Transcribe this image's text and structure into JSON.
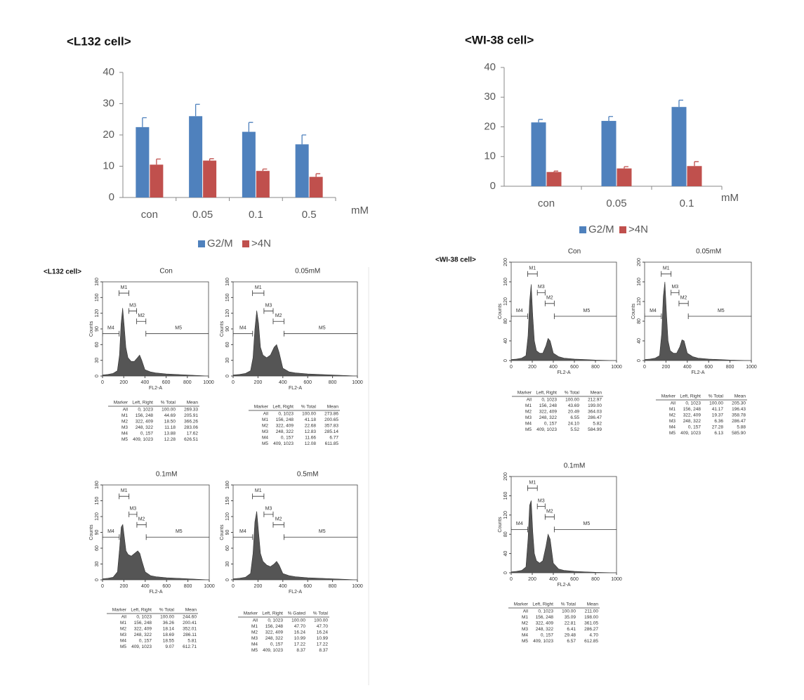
{
  "chart_data": [
    {
      "type": "bar",
      "title": "<L132 cell>",
      "categories": [
        "con",
        "0.05",
        "0.1",
        "0.5"
      ],
      "xlabel": "mM",
      "ylim": [
        0,
        40
      ],
      "yticks": [
        0,
        10,
        20,
        30,
        40
      ],
      "series": [
        {
          "name": "G2/M",
          "color": "#4f81bd",
          "values": [
            22.5,
            26,
            21,
            17
          ],
          "errors": [
            3,
            3.8,
            3,
            3
          ]
        },
        {
          "name": ">4N",
          "color": "#c0504d",
          "values": [
            10.5,
            11.8,
            8.5,
            6.6
          ],
          "errors": [
            1.8,
            0.6,
            0.6,
            1
          ]
        }
      ]
    },
    {
      "type": "bar",
      "title": "<WI-38 cell>",
      "categories": [
        "con",
        "0.05",
        "0.1"
      ],
      "xlabel": "mM",
      "ylim": [
        0,
        40
      ],
      "yticks": [
        0,
        10,
        20,
        30,
        40
      ],
      "series": [
        {
          "name": "G2/M",
          "color": "#4f81bd",
          "values": [
            21.5,
            22,
            26.7
          ],
          "errors": [
            1,
            1.5,
            2.3
          ]
        },
        {
          "name": ">4N",
          "color": "#c0504d",
          "values": [
            4.8,
            6,
            6.8
          ],
          "errors": [
            0.3,
            0.6,
            1.5
          ]
        }
      ]
    }
  ],
  "flow_sections": [
    {
      "label": "<L132 cell>",
      "panels": [
        {
          "type": "area",
          "title": "Con",
          "xlabel": "FL2-A",
          "ylabel": "Counts",
          "color": "#555555",
          "xlim": [
            0,
            1000
          ],
          "xticks": [
            0,
            200,
            400,
            600,
            800,
            1000
          ],
          "ylim": [
            0,
            180
          ],
          "yticks": [
            0,
            30,
            60,
            90,
            120,
            150,
            180
          ],
          "x": [
            0,
            50,
            100,
            140,
            160,
            175,
            190,
            205,
            220,
            240,
            270,
            300,
            330,
            350,
            370,
            400,
            450,
            500,
            600,
            700,
            800,
            1000
          ],
          "values": [
            2,
            3,
            5,
            10,
            40,
            100,
            130,
            95,
            55,
            35,
            28,
            28,
            35,
            40,
            30,
            12,
            8,
            6,
            4,
            3,
            2,
            0
          ],
          "table": {
            "header": [
              "Marker",
              "Left, Right",
              "% Total",
              "Mean"
            ],
            "rows": [
              [
                "All",
                "0, 1023",
                "100.00",
                "269.33"
              ],
              [
                "M1",
                "156, 248",
                "44.69",
                "205.91"
              ],
              [
                "M2",
                "322, 409",
                "18.50",
                "366.26"
              ],
              [
                "M3",
                "248, 322",
                "11.18",
                "283.06"
              ],
              [
                "M4",
                "0, 157",
                "13.88",
                "17.62"
              ],
              [
                "M5",
                "409, 1023",
                "12.28",
                "626.51"
              ]
            ]
          }
        },
        {
          "type": "area",
          "title": "0.05mM",
          "xlabel": "FL2-A",
          "ylabel": "Counts",
          "color": "#555555",
          "xlim": [
            0,
            1000
          ],
          "xticks": [
            0,
            200,
            400,
            600,
            800,
            1000
          ],
          "ylim": [
            0,
            180
          ],
          "yticks": [
            0,
            30,
            60,
            90,
            120,
            150,
            180
          ],
          "x": [
            0,
            50,
            100,
            140,
            160,
            175,
            190,
            205,
            220,
            240,
            270,
            300,
            330,
            350,
            370,
            400,
            450,
            500,
            600,
            700,
            800,
            1000
          ],
          "values": [
            2,
            3,
            5,
            10,
            35,
            90,
            125,
            100,
            55,
            40,
            35,
            40,
            55,
            60,
            45,
            15,
            8,
            6,
            4,
            3,
            2,
            0
          ],
          "table": {
            "header": [
              "Marker",
              "Left, Right",
              "% Total",
              "Mean"
            ],
            "rows": [
              [
                "All",
                "0, 1023",
                "100.00",
                "273.86"
              ],
              [
                "M1",
                "156, 248",
                "41.18",
                "200.65"
              ],
              [
                "M2",
                "322, 409",
                "22.68",
                "357.83"
              ],
              [
                "M3",
                "248, 322",
                "12.83",
                "285.14"
              ],
              [
                "M4",
                "0, 157",
                "11.66",
                "6.77"
              ],
              [
                "M5",
                "409, 1023",
                "12.08",
                "611.85"
              ]
            ]
          }
        },
        {
          "type": "area",
          "title": "0.1mM",
          "xlabel": "FL2-A",
          "ylabel": "Counts",
          "color": "#555555",
          "xlim": [
            0,
            1000
          ],
          "xticks": [
            0,
            200,
            400,
            600,
            800,
            1000
          ],
          "ylim": [
            0,
            180
          ],
          "yticks": [
            0,
            30,
            60,
            90,
            120,
            150,
            180
          ],
          "x": [
            0,
            50,
            100,
            140,
            160,
            175,
            190,
            205,
            220,
            240,
            270,
            300,
            330,
            350,
            370,
            400,
            450,
            500,
            600,
            700,
            800,
            1000
          ],
          "values": [
            2,
            3,
            5,
            15,
            60,
            100,
            105,
            80,
            55,
            48,
            45,
            50,
            55,
            50,
            35,
            15,
            8,
            6,
            4,
            3,
            2,
            0
          ],
          "table": {
            "header": [
              "Marker",
              "Left, Right",
              "% Total",
              "Mean"
            ],
            "rows": [
              [
                "All",
                "0, 1023",
                "100.00",
                "244.60"
              ],
              [
                "M1",
                "156, 248",
                "36.26",
                "200.41"
              ],
              [
                "M2",
                "322, 409",
                "18.14",
                "352.01"
              ],
              [
                "M3",
                "248, 322",
                "18.69",
                "286.11"
              ],
              [
                "M4",
                "0, 157",
                "18.55",
                "5.81"
              ],
              [
                "M5",
                "409, 1023",
                "9.07",
                "612.71"
              ]
            ]
          }
        },
        {
          "type": "area",
          "title": "0.5mM",
          "xlabel": "FL2-A",
          "ylabel": "Counts",
          "color": "#555555",
          "xlim": [
            0,
            1000
          ],
          "xticks": [
            0,
            200,
            400,
            600,
            800,
            1000
          ],
          "ylim": [
            0,
            180
          ],
          "yticks": [
            0,
            30,
            60,
            90,
            120,
            150,
            180
          ],
          "x": [
            0,
            50,
            100,
            140,
            160,
            175,
            190,
            205,
            220,
            240,
            270,
            300,
            330,
            350,
            370,
            400,
            450,
            500,
            600,
            700,
            800,
            1000
          ],
          "values": [
            2,
            3,
            5,
            12,
            50,
            110,
            130,
            90,
            50,
            35,
            28,
            25,
            30,
            35,
            28,
            12,
            8,
            6,
            4,
            3,
            2,
            0
          ],
          "table": {
            "header": [
              "Marker",
              "Left, Right",
              "% Gated",
              "% Total"
            ],
            "rows": [
              [
                "All",
                "0, 1023",
                "100.00",
                "100.00"
              ],
              [
                "M1",
                "156, 248",
                "47.70",
                "47.70"
              ],
              [
                "M2",
                "322, 409",
                "16.24",
                "16.24"
              ],
              [
                "M3",
                "248, 322",
                "10.99",
                "10.99"
              ],
              [
                "M4",
                "0, 157",
                "17.22",
                "17.22"
              ],
              [
                "M5",
                "409, 1023",
                "8.37",
                "8.37"
              ]
            ]
          }
        }
      ]
    },
    {
      "label": "<WI-38 cell>",
      "panels": [
        {
          "type": "area",
          "title": "Con",
          "xlabel": "FL2-A",
          "ylabel": "Counts",
          "color": "#555555",
          "xlim": [
            0,
            1000
          ],
          "xticks": [
            0,
            200,
            400,
            600,
            800,
            1000
          ],
          "ylim": [
            0,
            200
          ],
          "yticks": [
            0,
            40,
            80,
            120,
            160,
            200
          ],
          "x": [
            0,
            50,
            100,
            140,
            160,
            175,
            190,
            205,
            220,
            240,
            270,
            300,
            330,
            350,
            370,
            400,
            450,
            500,
            600,
            700,
            800,
            1000
          ],
          "values": [
            2,
            3,
            5,
            10,
            50,
            120,
            155,
            90,
            40,
            20,
            15,
            15,
            30,
            45,
            40,
            15,
            8,
            5,
            3,
            2,
            1,
            0
          ],
          "table": {
            "header": [
              "Marker",
              "Left, Right",
              "% Total",
              "Mean"
            ],
            "rows": [
              [
                "All",
                "0, 1023",
                "100.00",
                "212.97"
              ],
              [
                "M1",
                "156, 248",
                "43.69",
                "199.00"
              ],
              [
                "M2",
                "322, 409",
                "20.49",
                "364.03"
              ],
              [
                "M3",
                "248, 322",
                "6.55",
                "286.47"
              ],
              [
                "M4",
                "0, 157",
                "24.10",
                "5.82"
              ],
              [
                "M5",
                "409, 1023",
                "5.52",
                "584.99"
              ]
            ]
          }
        },
        {
          "type": "area",
          "title": "0.05mM",
          "xlabel": "FL2-A",
          "ylabel": "Counts",
          "color": "#555555",
          "xlim": [
            0,
            1000
          ],
          "xticks": [
            0,
            200,
            400,
            600,
            800,
            1000
          ],
          "ylim": [
            0,
            200
          ],
          "yticks": [
            0,
            40,
            80,
            120,
            160,
            200
          ],
          "x": [
            0,
            50,
            100,
            140,
            160,
            175,
            190,
            205,
            220,
            240,
            270,
            300,
            330,
            350,
            370,
            400,
            450,
            500,
            600,
            700,
            800,
            1000
          ],
          "values": [
            2,
            3,
            5,
            10,
            55,
            130,
            160,
            95,
            40,
            20,
            15,
            15,
            28,
            42,
            40,
            15,
            8,
            5,
            3,
            2,
            1,
            0
          ],
          "table": {
            "header": [
              "Marker",
              "Left, Right",
              "% Total",
              "Mean"
            ],
            "rows": [
              [
                "All",
                "0, 1023",
                "100.00",
                "205.30"
              ],
              [
                "M1",
                "156, 248",
                "41.17",
                "196.43"
              ],
              [
                "M2",
                "322, 409",
                "19.37",
                "358.78"
              ],
              [
                "M3",
                "248, 322",
                "6.36",
                "286.47"
              ],
              [
                "M4",
                "0, 157",
                "27.28",
                "5.88"
              ],
              [
                "M5",
                "409, 1023",
                "6.13",
                "585.90"
              ]
            ]
          }
        },
        {
          "type": "area",
          "title": "0.1mM",
          "xlabel": "FL2-A",
          "ylabel": "Counts",
          "color": "#555555",
          "xlim": [
            0,
            1000
          ],
          "xticks": [
            0,
            200,
            400,
            600,
            800,
            1000
          ],
          "ylim": [
            0,
            200
          ],
          "yticks": [
            0,
            40,
            80,
            120,
            160,
            200
          ],
          "x": [
            0,
            50,
            100,
            140,
            160,
            175,
            190,
            205,
            220,
            240,
            270,
            300,
            330,
            350,
            370,
            400,
            450,
            500,
            600,
            700,
            800,
            1000
          ],
          "values": [
            2,
            3,
            5,
            12,
            70,
            140,
            150,
            85,
            40,
            25,
            20,
            25,
            55,
            80,
            70,
            20,
            8,
            5,
            3,
            2,
            1,
            0
          ],
          "table": {
            "header": [
              "Marker",
              "Left, Right",
              "% Total",
              "Mean"
            ],
            "rows": [
              [
                "All",
                "0, 1023",
                "100.00",
                "211.00"
              ],
              [
                "M1",
                "156, 248",
                "35.09",
                "198.00"
              ],
              [
                "M2",
                "322, 409",
                "22.81",
                "361.05"
              ],
              [
                "M3",
                "248, 322",
                "6.41",
                "286.27"
              ],
              [
                "M4",
                "0, 157",
                "29.48",
                "4.70"
              ],
              [
                "M5",
                "409, 1023",
                "6.57",
                "612.85"
              ]
            ]
          }
        }
      ]
    }
  ]
}
